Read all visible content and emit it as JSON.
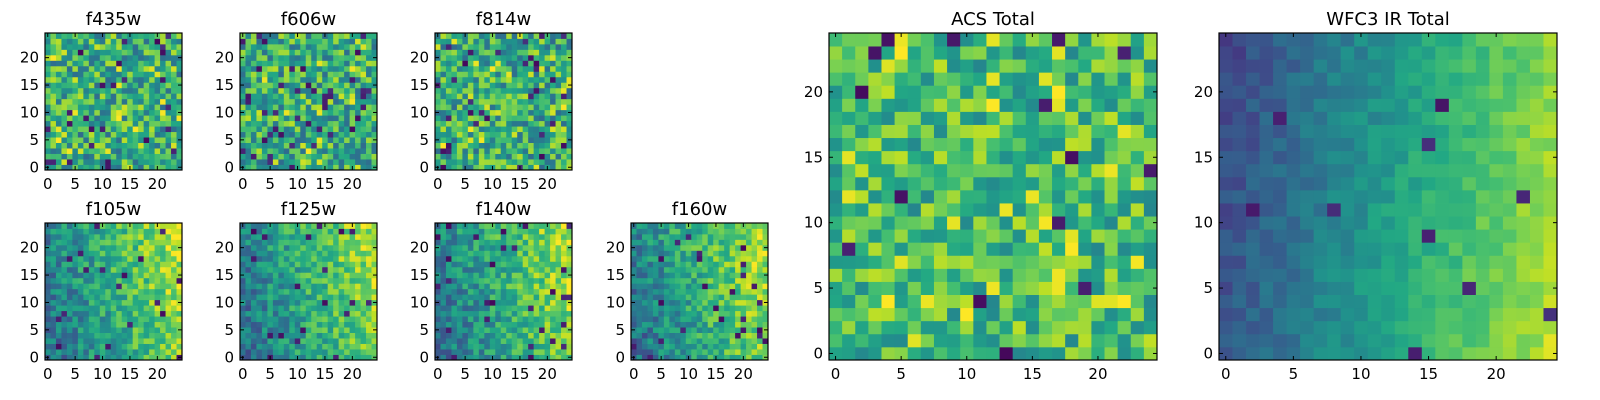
{
  "chart_data": [
    {
      "type": "heatmap",
      "title": "f435w",
      "grid_size": 25,
      "xlim": [
        -0.5,
        24.5
      ],
      "ylim": [
        -0.5,
        24.5
      ],
      "x_ticks": [
        0,
        5,
        10,
        15,
        20
      ],
      "y_ticks": [
        0,
        5,
        10,
        15,
        20
      ],
      "colormap": "viridis",
      "seed": 11,
      "mode": "noise"
    },
    {
      "type": "heatmap",
      "title": "f606w",
      "grid_size": 25,
      "xlim": [
        -0.5,
        24.5
      ],
      "ylim": [
        -0.5,
        24.5
      ],
      "x_ticks": [
        0,
        5,
        10,
        15,
        20
      ],
      "y_ticks": [
        0,
        5,
        10,
        15,
        20
      ],
      "colormap": "viridis",
      "seed": 23,
      "mode": "noise"
    },
    {
      "type": "heatmap",
      "title": "f814w",
      "grid_size": 25,
      "xlim": [
        -0.5,
        24.5
      ],
      "ylim": [
        -0.5,
        24.5
      ],
      "x_ticks": [
        0,
        5,
        10,
        15,
        20
      ],
      "y_ticks": [
        0,
        5,
        10,
        15,
        20
      ],
      "colormap": "viridis",
      "seed": 37,
      "mode": "noise"
    },
    {
      "type": "heatmap",
      "title": "f105w",
      "grid_size": 25,
      "xlim": [
        -0.5,
        24.5
      ],
      "ylim": [
        -0.5,
        24.5
      ],
      "x_ticks": [
        0,
        5,
        10,
        15,
        20
      ],
      "y_ticks": [
        0,
        5,
        10,
        15,
        20
      ],
      "colormap": "viridis",
      "seed": 41,
      "mode": "gradient"
    },
    {
      "type": "heatmap",
      "title": "f125w",
      "grid_size": 25,
      "xlim": [
        -0.5,
        24.5
      ],
      "ylim": [
        -0.5,
        24.5
      ],
      "x_ticks": [
        0,
        5,
        10,
        15,
        20
      ],
      "y_ticks": [
        0,
        5,
        10,
        15,
        20
      ],
      "colormap": "viridis",
      "seed": 53,
      "mode": "gradient"
    },
    {
      "type": "heatmap",
      "title": "f140w",
      "grid_size": 25,
      "xlim": [
        -0.5,
        24.5
      ],
      "ylim": [
        -0.5,
        24.5
      ],
      "x_ticks": [
        0,
        5,
        10,
        15,
        20
      ],
      "y_ticks": [
        0,
        5,
        10,
        15,
        20
      ],
      "colormap": "viridis",
      "seed": 67,
      "mode": "gradient"
    },
    {
      "type": "heatmap",
      "title": "f160w",
      "grid_size": 25,
      "xlim": [
        -0.5,
        24.5
      ],
      "ylim": [
        -0.5,
        24.5
      ],
      "x_ticks": [
        0,
        5,
        10,
        15,
        20
      ],
      "y_ticks": [
        0,
        5,
        10,
        15,
        20
      ],
      "colormap": "viridis",
      "seed": 79,
      "mode": "gradient"
    },
    {
      "type": "heatmap",
      "title": "ACS Total",
      "grid_size": 25,
      "xlim": [
        -0.5,
        24.5
      ],
      "ylim": [
        -0.5,
        24.5
      ],
      "x_ticks": [
        0,
        5,
        10,
        15,
        20
      ],
      "y_ticks": [
        0,
        5,
        10,
        15,
        20
      ],
      "colormap": "viridis",
      "seed": 97,
      "mode": "total-acs"
    },
    {
      "type": "heatmap",
      "title": "WFC3 IR Total",
      "grid_size": 25,
      "xlim": [
        -0.5,
        24.5
      ],
      "ylim": [
        -0.5,
        24.5
      ],
      "x_ticks": [
        0,
        5,
        10,
        15,
        20
      ],
      "y_ticks": [
        0,
        5,
        10,
        15,
        20
      ],
      "colormap": "viridis",
      "seed": 131,
      "mode": "total-ir"
    }
  ]
}
